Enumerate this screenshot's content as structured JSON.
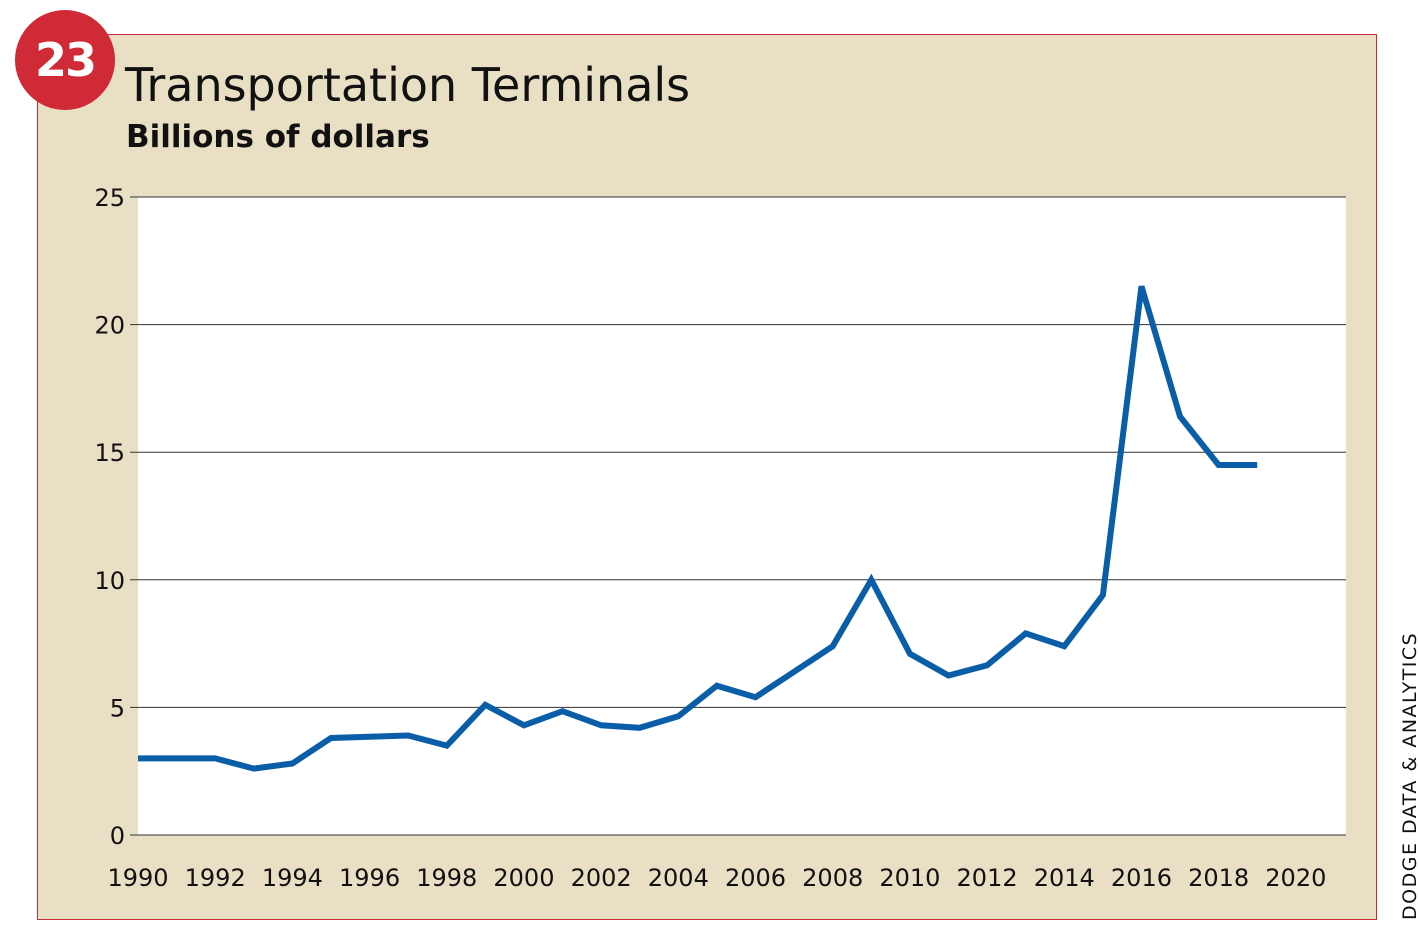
{
  "badge": "23",
  "title": "Transportation Terminals",
  "subtitle": "Billions of dollars",
  "source": "DODGE DATA & ANALYTICS",
  "colors": {
    "line": "#0a5ea8",
    "accent": "#cf2a35",
    "background": "#e9dfc4",
    "plot": "#ffffff"
  },
  "chart_data": {
    "type": "line",
    "title": "Transportation Terminals",
    "subtitle": "Billions of dollars",
    "xlabel": "",
    "ylabel": "",
    "xlim": [
      1990,
      2021.3
    ],
    "ylim": [
      0,
      25
    ],
    "x_ticks": [
      "1990",
      "1992",
      "1994",
      "1996",
      "1998",
      "2000",
      "2002",
      "2004",
      "2006",
      "2008",
      "2010",
      "2012",
      "2014",
      "2016",
      "2018",
      "2020"
    ],
    "y_ticks": [
      "0",
      "5",
      "10",
      "15",
      "20",
      "25"
    ],
    "grid": "horizontal",
    "series": [
      {
        "x": [
          1990,
          1991,
          1992,
          1993,
          1994,
          1995,
          1996,
          1997,
          1998,
          1999,
          2000,
          2001,
          2002,
          2003,
          2004,
          2005,
          2006,
          2007,
          2008,
          2009,
          2010,
          2011,
          2012,
          2013,
          2014,
          2015,
          2016,
          2017,
          2018,
          2019
        ],
        "y": [
          3.0,
          3.0,
          3.0,
          2.6,
          2.8,
          3.8,
          3.85,
          3.9,
          3.5,
          5.1,
          4.3,
          4.85,
          4.3,
          4.2,
          4.65,
          5.85,
          5.4,
          6.4,
          7.4,
          10.0,
          7.1,
          6.25,
          6.65,
          7.9,
          7.4,
          9.4,
          21.5,
          16.4,
          14.5,
          14.5
        ]
      }
    ]
  }
}
